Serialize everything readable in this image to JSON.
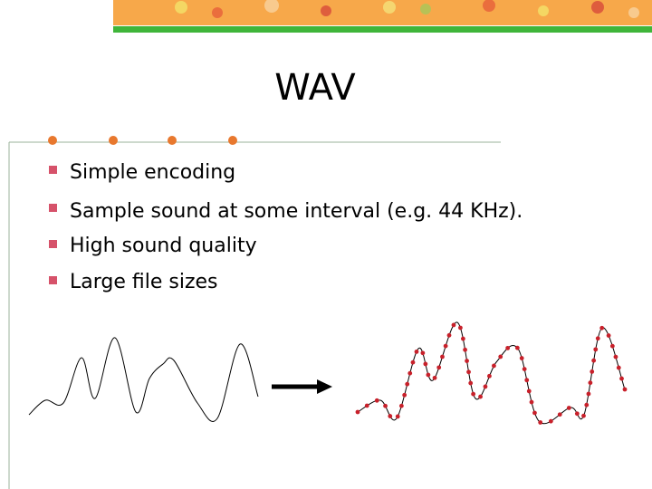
{
  "slide": {
    "title": "WAV",
    "bullets": [
      "Simple encoding",
      "Sample sound at some interval (e.g. 44 KHz).",
      "High sound quality",
      "Large file sizes"
    ]
  }
}
